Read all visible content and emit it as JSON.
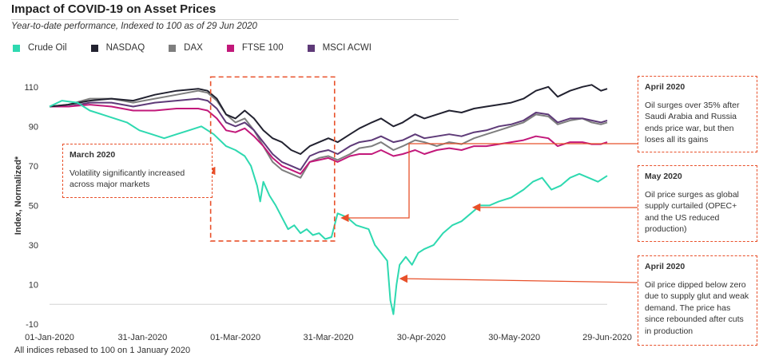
{
  "header": {
    "title": "Impact of COVID-19 on Asset Prices",
    "subtitle": "Year-to-date performance, Indexed to 100 as of 29 Jun 2020"
  },
  "footnote": "All indices rebased to 100 on 1 January  2020",
  "colors": {
    "crude": "#2ed9b0",
    "nasdaq": "#222230",
    "dax": "#7e7e7e",
    "ftse": "#c2187a",
    "msci": "#5e3a78",
    "annotation": "#e8502a"
  },
  "annotations": [
    {
      "title": "March 2020",
      "text": "Volatility significantly increased across major markets",
      "target_date": "01-Mar-2020",
      "target_value": 75
    },
    {
      "title": "April 2020",
      "text": "Oil surges over 35%  after Saudi Arabia and Russia ends price war, but then loses all its gains",
      "target_date": "02-Apr-2020",
      "target_value": 38
    },
    {
      "title": "May 2020",
      "text": "Oil price surges as global supply curtailed (OPEC+ and the US reduced production)",
      "target_date": "15-May-2020",
      "target_value": 49
    },
    {
      "title": "April 2020",
      "text": "Oil price dipped below zero due to supply glut and weak demand. The price has since rebounded after cuts in production",
      "target_date": "22-Apr-2020",
      "target_value": 13
    }
  ],
  "chart_data": {
    "type": "line",
    "ylabel": "Index, Normalized*",
    "xlabel": "",
    "ylim": [
      -10,
      120
    ],
    "yticks": [
      -10,
      10,
      30,
      50,
      70,
      90,
      110
    ],
    "xlim": [
      "01-Jan-2020",
      "29-Jun-2020"
    ],
    "xticks": [
      "01-Jan-2020",
      "31-Jan-2020",
      "01-Mar-2020",
      "31-Mar-2020",
      "30-Apr-2020",
      "30-May-2020",
      "29-Jun-2020"
    ],
    "grid": "horizontal line at 0 only",
    "legend": "top-left",
    "highlight_region": {
      "from": "22-Feb-2020",
      "to": "02-Apr-2020",
      "ymin": 32,
      "ymax": 115
    },
    "series": [
      {
        "name": "Crude Oil",
        "color_key": "crude",
        "points": [
          [
            "01-Jan-2020",
            100
          ],
          [
            "05-Jan-2020",
            103
          ],
          [
            "10-Jan-2020",
            102
          ],
          [
            "14-Jan-2020",
            98
          ],
          [
            "18-Jan-2020",
            96
          ],
          [
            "22-Jan-2020",
            94
          ],
          [
            "26-Jan-2020",
            92
          ],
          [
            "30-Jan-2020",
            88
          ],
          [
            "03-Feb-2020",
            86
          ],
          [
            "07-Feb-2020",
            84
          ],
          [
            "11-Feb-2020",
            86
          ],
          [
            "15-Feb-2020",
            88
          ],
          [
            "19-Feb-2020",
            90
          ],
          [
            "23-Feb-2020",
            86
          ],
          [
            "27-Feb-2020",
            80
          ],
          [
            "01-Mar-2020",
            78
          ],
          [
            "04-Mar-2020",
            75
          ],
          [
            "06-Mar-2020",
            70
          ],
          [
            "08-Mar-2020",
            60
          ],
          [
            "09-Mar-2020",
            52
          ],
          [
            "10-Mar-2020",
            62
          ],
          [
            "12-Mar-2020",
            55
          ],
          [
            "14-Mar-2020",
            50
          ],
          [
            "16-Mar-2020",
            44
          ],
          [
            "18-Mar-2020",
            38
          ],
          [
            "20-Mar-2020",
            40
          ],
          [
            "22-Mar-2020",
            36
          ],
          [
            "24-Mar-2020",
            38
          ],
          [
            "26-Mar-2020",
            35
          ],
          [
            "28-Mar-2020",
            36
          ],
          [
            "30-Mar-2020",
            33
          ],
          [
            "01-Apr-2020",
            34
          ],
          [
            "03-Apr-2020",
            46
          ],
          [
            "06-Apr-2020",
            44
          ],
          [
            "09-Apr-2020",
            40
          ],
          [
            "13-Apr-2020",
            38
          ],
          [
            "15-Apr-2020",
            30
          ],
          [
            "17-Apr-2020",
            26
          ],
          [
            "19-Apr-2020",
            22
          ],
          [
            "20-Apr-2020",
            2
          ],
          [
            "21-Apr-2020",
            -5
          ],
          [
            "22-Apr-2020",
            10
          ],
          [
            "23-Apr-2020",
            20
          ],
          [
            "25-Apr-2020",
            24
          ],
          [
            "27-Apr-2020",
            20
          ],
          [
            "29-Apr-2020",
            26
          ],
          [
            "01-May-2020",
            28
          ],
          [
            "04-May-2020",
            30
          ],
          [
            "07-May-2020",
            36
          ],
          [
            "10-May-2020",
            40
          ],
          [
            "13-May-2020",
            42
          ],
          [
            "16-May-2020",
            46
          ],
          [
            "19-May-2020",
            50
          ],
          [
            "22-May-2020",
            50
          ],
          [
            "25-May-2020",
            52
          ],
          [
            "29-May-2020",
            54
          ],
          [
            "02-Jun-2020",
            58
          ],
          [
            "05-Jun-2020",
            62
          ],
          [
            "08-Jun-2020",
            64
          ],
          [
            "11-Jun-2020",
            58
          ],
          [
            "14-Jun-2020",
            60
          ],
          [
            "17-Jun-2020",
            64
          ],
          [
            "20-Jun-2020",
            66
          ],
          [
            "23-Jun-2020",
            64
          ],
          [
            "26-Jun-2020",
            62
          ],
          [
            "29-Jun-2020",
            65
          ]
        ]
      },
      {
        "name": "NASDAQ",
        "color_key": "nasdaq",
        "points": [
          [
            "01-Jan-2020",
            100
          ],
          [
            "07-Jan-2020",
            101
          ],
          [
            "14-Jan-2020",
            103
          ],
          [
            "21-Jan-2020",
            104
          ],
          [
            "28-Jan-2020",
            103
          ],
          [
            "04-Feb-2020",
            106
          ],
          [
            "11-Feb-2020",
            108
          ],
          [
            "18-Feb-2020",
            109
          ],
          [
            "21-Feb-2020",
            108
          ],
          [
            "24-Feb-2020",
            104
          ],
          [
            "27-Feb-2020",
            96
          ],
          [
            "01-Mar-2020",
            94
          ],
          [
            "04-Mar-2020",
            98
          ],
          [
            "07-Mar-2020",
            94
          ],
          [
            "10-Mar-2020",
            88
          ],
          [
            "13-Mar-2020",
            84
          ],
          [
            "16-Mar-2020",
            82
          ],
          [
            "19-Mar-2020",
            78
          ],
          [
            "22-Mar-2020",
            76
          ],
          [
            "25-Mar-2020",
            80
          ],
          [
            "28-Mar-2020",
            82
          ],
          [
            "31-Mar-2020",
            84
          ],
          [
            "03-Apr-2020",
            82
          ],
          [
            "07-Apr-2020",
            86
          ],
          [
            "10-Apr-2020",
            89
          ],
          [
            "14-Apr-2020",
            92
          ],
          [
            "17-Apr-2020",
            94
          ],
          [
            "21-Apr-2020",
            90
          ],
          [
            "24-Apr-2020",
            92
          ],
          [
            "28-Apr-2020",
            96
          ],
          [
            "01-May-2020",
            94
          ],
          [
            "05-May-2020",
            96
          ],
          [
            "09-May-2020",
            98
          ],
          [
            "13-May-2020",
            97
          ],
          [
            "17-May-2020",
            99
          ],
          [
            "21-May-2020",
            100
          ],
          [
            "25-May-2020",
            101
          ],
          [
            "29-May-2020",
            102
          ],
          [
            "02-Jun-2020",
            104
          ],
          [
            "06-Jun-2020",
            108
          ],
          [
            "10-Jun-2020",
            110
          ],
          [
            "13-Jun-2020",
            105
          ],
          [
            "17-Jun-2020",
            108
          ],
          [
            "21-Jun-2020",
            110
          ],
          [
            "24-Jun-2020",
            111
          ],
          [
            "27-Jun-2020",
            108
          ],
          [
            "29-Jun-2020",
            109
          ]
        ]
      },
      {
        "name": "DAX",
        "color_key": "dax",
        "points": [
          [
            "01-Jan-2020",
            100
          ],
          [
            "07-Jan-2020",
            101
          ],
          [
            "14-Jan-2020",
            104
          ],
          [
            "21-Jan-2020",
            104
          ],
          [
            "28-Jan-2020",
            102
          ],
          [
            "04-Feb-2020",
            104
          ],
          [
            "11-Feb-2020",
            106
          ],
          [
            "18-Feb-2020",
            108
          ],
          [
            "21-Feb-2020",
            107
          ],
          [
            "24-Feb-2020",
            103
          ],
          [
            "27-Feb-2020",
            96
          ],
          [
            "01-Mar-2020",
            92
          ],
          [
            "04-Mar-2020",
            94
          ],
          [
            "07-Mar-2020",
            88
          ],
          [
            "10-Mar-2020",
            80
          ],
          [
            "13-Mar-2020",
            72
          ],
          [
            "16-Mar-2020",
            68
          ],
          [
            "19-Mar-2020",
            66
          ],
          [
            "22-Mar-2020",
            64
          ],
          [
            "25-Mar-2020",
            72
          ],
          [
            "28-Mar-2020",
            74
          ],
          [
            "31-Mar-2020",
            75
          ],
          [
            "03-Apr-2020",
            73
          ],
          [
            "07-Apr-2020",
            76
          ],
          [
            "10-Apr-2020",
            79
          ],
          [
            "14-Apr-2020",
            80
          ],
          [
            "17-Apr-2020",
            82
          ],
          [
            "21-Apr-2020",
            78
          ],
          [
            "24-Apr-2020",
            80
          ],
          [
            "28-Apr-2020",
            83
          ],
          [
            "01-May-2020",
            82
          ],
          [
            "05-May-2020",
            80
          ],
          [
            "09-May-2020",
            82
          ],
          [
            "13-May-2020",
            81
          ],
          [
            "17-May-2020",
            84
          ],
          [
            "21-May-2020",
            86
          ],
          [
            "25-May-2020",
            88
          ],
          [
            "29-May-2020",
            90
          ],
          [
            "02-Jun-2020",
            92
          ],
          [
            "06-Jun-2020",
            96
          ],
          [
            "10-Jun-2020",
            95
          ],
          [
            "13-Jun-2020",
            91
          ],
          [
            "17-Jun-2020",
            93
          ],
          [
            "21-Jun-2020",
            94
          ],
          [
            "24-Jun-2020",
            92
          ],
          [
            "27-Jun-2020",
            91
          ],
          [
            "29-Jun-2020",
            92
          ]
        ]
      },
      {
        "name": "FTSE 100",
        "color_key": "ftse",
        "points": [
          [
            "01-Jan-2020",
            100
          ],
          [
            "07-Jan-2020",
            100
          ],
          [
            "14-Jan-2020",
            101
          ],
          [
            "21-Jan-2020",
            100
          ],
          [
            "28-Jan-2020",
            98
          ],
          [
            "04-Feb-2020",
            98
          ],
          [
            "11-Feb-2020",
            99
          ],
          [
            "18-Feb-2020",
            99
          ],
          [
            "21-Feb-2020",
            98
          ],
          [
            "24-Feb-2020",
            94
          ],
          [
            "27-Feb-2020",
            88
          ],
          [
            "01-Mar-2020",
            87
          ],
          [
            "04-Mar-2020",
            89
          ],
          [
            "07-Mar-2020",
            85
          ],
          [
            "10-Mar-2020",
            80
          ],
          [
            "13-Mar-2020",
            74
          ],
          [
            "16-Mar-2020",
            70
          ],
          [
            "19-Mar-2020",
            68
          ],
          [
            "22-Mar-2020",
            66
          ],
          [
            "25-Mar-2020",
            72
          ],
          [
            "28-Mar-2020",
            73
          ],
          [
            "31-Mar-2020",
            74
          ],
          [
            "03-Apr-2020",
            72
          ],
          [
            "07-Apr-2020",
            75
          ],
          [
            "10-Apr-2020",
            76
          ],
          [
            "14-Apr-2020",
            76
          ],
          [
            "17-Apr-2020",
            78
          ],
          [
            "21-Apr-2020",
            75
          ],
          [
            "24-Apr-2020",
            76
          ],
          [
            "28-Apr-2020",
            78
          ],
          [
            "01-May-2020",
            76
          ],
          [
            "05-May-2020",
            78
          ],
          [
            "09-May-2020",
            79
          ],
          [
            "13-May-2020",
            78
          ],
          [
            "17-May-2020",
            80
          ],
          [
            "21-May-2020",
            80
          ],
          [
            "25-May-2020",
            81
          ],
          [
            "29-May-2020",
            82
          ],
          [
            "02-Jun-2020",
            83
          ],
          [
            "06-Jun-2020",
            85
          ],
          [
            "10-Jun-2020",
            84
          ],
          [
            "13-Jun-2020",
            80
          ],
          [
            "17-Jun-2020",
            82
          ],
          [
            "21-Jun-2020",
            82
          ],
          [
            "24-Jun-2020",
            81
          ],
          [
            "27-Jun-2020",
            81
          ],
          [
            "29-Jun-2020",
            82
          ]
        ]
      },
      {
        "name": "MSCI ACWI",
        "color_key": "msci",
        "points": [
          [
            "01-Jan-2020",
            100
          ],
          [
            "07-Jan-2020",
            100
          ],
          [
            "14-Jan-2020",
            102
          ],
          [
            "21-Jan-2020",
            102
          ],
          [
            "28-Jan-2020",
            100
          ],
          [
            "04-Feb-2020",
            102
          ],
          [
            "11-Feb-2020",
            103
          ],
          [
            "18-Feb-2020",
            104
          ],
          [
            "21-Feb-2020",
            103
          ],
          [
            "24-Feb-2020",
            99
          ],
          [
            "27-Feb-2020",
            92
          ],
          [
            "01-Mar-2020",
            90
          ],
          [
            "04-Mar-2020",
            92
          ],
          [
            "07-Mar-2020",
            88
          ],
          [
            "10-Mar-2020",
            82
          ],
          [
            "13-Mar-2020",
            76
          ],
          [
            "16-Mar-2020",
            72
          ],
          [
            "19-Mar-2020",
            70
          ],
          [
            "22-Mar-2020",
            68
          ],
          [
            "25-Mar-2020",
            75
          ],
          [
            "28-Mar-2020",
            77
          ],
          [
            "31-Mar-2020",
            78
          ],
          [
            "03-Apr-2020",
            76
          ],
          [
            "07-Apr-2020",
            80
          ],
          [
            "10-Apr-2020",
            82
          ],
          [
            "14-Apr-2020",
            83
          ],
          [
            "17-Apr-2020",
            85
          ],
          [
            "21-Apr-2020",
            82
          ],
          [
            "24-Apr-2020",
            83
          ],
          [
            "28-Apr-2020",
            86
          ],
          [
            "01-May-2020",
            84
          ],
          [
            "05-May-2020",
            85
          ],
          [
            "09-May-2020",
            86
          ],
          [
            "13-May-2020",
            85
          ],
          [
            "17-May-2020",
            87
          ],
          [
            "21-May-2020",
            88
          ],
          [
            "25-May-2020",
            90
          ],
          [
            "29-May-2020",
            91
          ],
          [
            "02-Jun-2020",
            93
          ],
          [
            "06-Jun-2020",
            97
          ],
          [
            "10-Jun-2020",
            96
          ],
          [
            "13-Jun-2020",
            92
          ],
          [
            "17-Jun-2020",
            94
          ],
          [
            "21-Jun-2020",
            94
          ],
          [
            "24-Jun-2020",
            93
          ],
          [
            "27-Jun-2020",
            92
          ],
          [
            "29-Jun-2020",
            93
          ]
        ]
      }
    ]
  }
}
